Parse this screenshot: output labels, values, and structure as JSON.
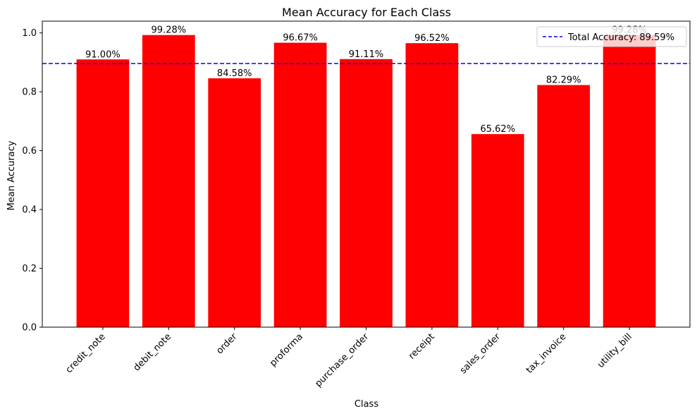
{
  "chart_data": {
    "type": "bar",
    "title": "Mean Accuracy for Each Class",
    "xlabel": "Class",
    "ylabel": "Mean Accuracy",
    "categories": [
      "credit_note",
      "debit_note",
      "order",
      "proforma",
      "purchase_order",
      "receipt",
      "sales_order",
      "tax_invoice",
      "utility_bill"
    ],
    "values": [
      0.91,
      0.9928,
      0.8458,
      0.9667,
      0.9111,
      0.9652,
      0.6562,
      0.8229,
      0.9928
    ],
    "data_labels": [
      "91.00%",
      "99.28%",
      "84.58%",
      "96.67%",
      "91.11%",
      "96.52%",
      "65.62%",
      "82.29%",
      "99.28%"
    ],
    "ylim": [
      0,
      1.04
    ],
    "yticks": [
      0.0,
      0.2,
      0.4,
      0.6,
      0.8,
      1.0
    ],
    "ytick_labels": [
      "0.0",
      "0.2",
      "0.4",
      "0.6",
      "0.8",
      "1.0"
    ],
    "bar_color": "#ff0000",
    "reference_line": {
      "value": 0.8959,
      "label": "Total Accuracy: 89.59%",
      "color": "#0000ff",
      "style": "dashed"
    },
    "legend_position": "top-right",
    "grid": false
  }
}
